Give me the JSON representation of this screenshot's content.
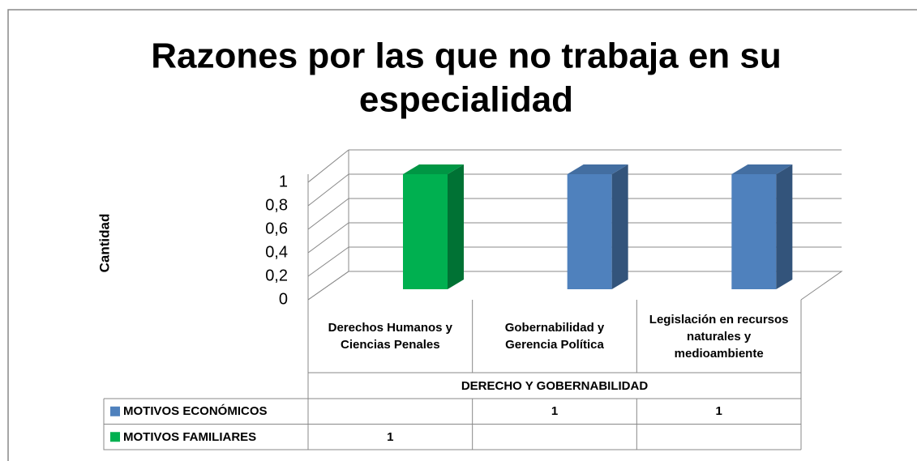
{
  "chart_data": {
    "type": "bar3d",
    "title": [
      "Razones por las que no trabaja en su",
      "especialidad"
    ],
    "y_label": "Cantidad",
    "categories": [
      "Derechos Humanos y Ciencias Penales",
      "Gobernabilidad y Gerencia Política",
      "Legislación en recursos naturales y medioambiente"
    ],
    "group_label": "DERECHO Y GOBERNABILIDAD",
    "series": [
      {
        "name": "MOTIVOS ECONÓMICOS",
        "color": "#4f81bd",
        "values": [
          null,
          1,
          1
        ]
      },
      {
        "name": "MOTIVOS FAMILIARES",
        "color": "#00b050",
        "values": [
          1,
          null,
          null
        ]
      }
    ],
    "ylim": [
      0,
      1
    ],
    "yticks": [
      0,
      {
        "value": 0.2,
        "label": "0,2"
      },
      {
        "value": 0.4,
        "label": "0,4"
      },
      {
        "value": 0.6,
        "label": "0,6"
      },
      {
        "value": 0.8,
        "label": "0,8"
      },
      1
    ],
    "grid": true
  }
}
